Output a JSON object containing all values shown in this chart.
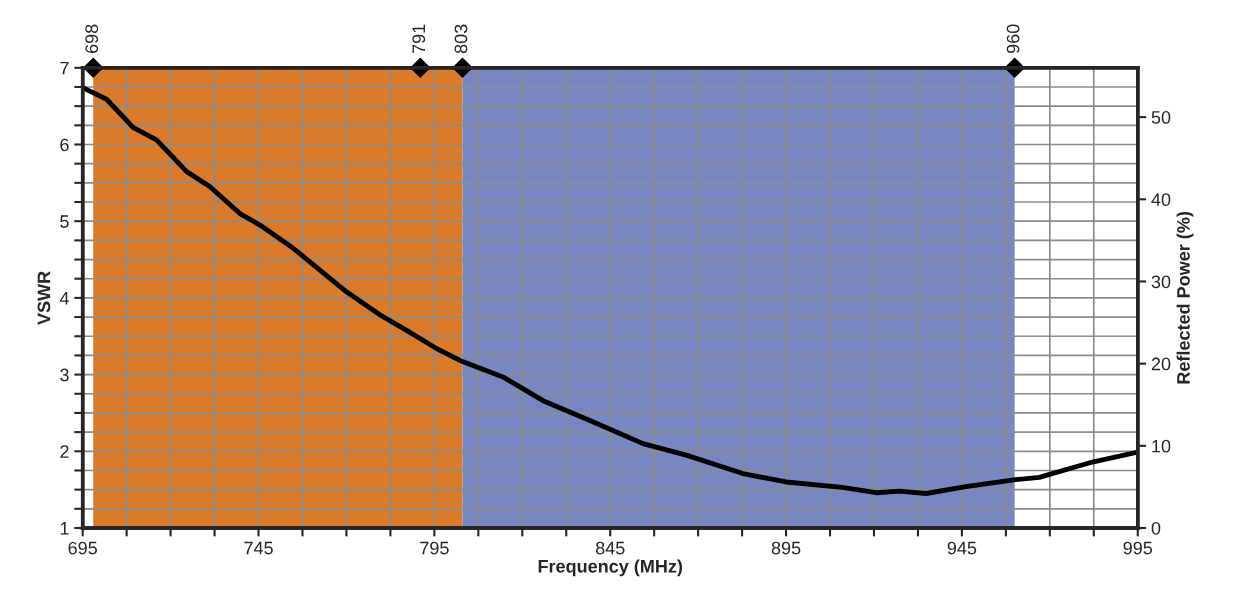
{
  "chart_data": {
    "type": "line",
    "xlabel": "Frequency (MHz)",
    "ylabel": "VSWR",
    "y2label": "Reflected Power (%)",
    "xlim": [
      695,
      995
    ],
    "xticks": [
      695,
      {
        "value": 707.5,
        "label": null
      },
      {
        "value": 720,
        "label": null
      },
      {
        "value": 732.5,
        "label": null
      },
      745,
      {
        "value": 757.5,
        "label": null
      },
      {
        "value": 770,
        "label": null
      },
      {
        "value": 782.5,
        "label": null
      },
      795,
      {
        "value": 807.5,
        "label": null
      },
      {
        "value": 820,
        "label": null
      },
      {
        "value": 832.5,
        "label": null
      },
      845,
      {
        "value": 857.5,
        "label": null
      },
      {
        "value": 870,
        "label": null
      },
      {
        "value": 882.5,
        "label": null
      },
      895,
      {
        "value": 907.5,
        "label": null
      },
      {
        "value": 920,
        "label": null
      },
      {
        "value": 932.5,
        "label": null
      },
      945,
      {
        "value": 957.5,
        "label": null
      },
      {
        "value": 970,
        "label": null
      },
      {
        "value": 982.5,
        "label": null
      },
      995
    ],
    "ylim": [
      1,
      7
    ],
    "yticks": [
      1,
      {
        "value": 1.25,
        "label": null
      },
      {
        "value": 1.5,
        "label": null
      },
      {
        "value": 1.75,
        "label": null
      },
      2,
      {
        "value": 2.25,
        "label": null
      },
      {
        "value": 2.5,
        "label": null
      },
      {
        "value": 2.75,
        "label": null
      },
      3,
      {
        "value": 3.25,
        "label": null
      },
      {
        "value": 3.5,
        "label": null
      },
      {
        "value": 3.75,
        "label": null
      },
      4,
      {
        "value": 4.25,
        "label": null
      },
      {
        "value": 4.5,
        "label": null
      },
      {
        "value": 4.75,
        "label": null
      },
      5,
      {
        "value": 5.25,
        "label": null
      },
      {
        "value": 5.5,
        "label": null
      },
      {
        "value": 5.75,
        "label": null
      },
      6,
      {
        "value": 6.25,
        "label": null
      },
      {
        "value": 6.5,
        "label": null
      },
      {
        "value": 6.75,
        "label": null
      },
      7
    ],
    "y2lim": [
      0,
      56
    ],
    "y2ticks": [
      0,
      10,
      20,
      30,
      40,
      50
    ],
    "grid": true,
    "bands": [
      {
        "axis": "x",
        "from": 698,
        "to": 803,
        "color": "#d97b2a"
      },
      {
        "axis": "x",
        "from": 803,
        "to": 960,
        "color": "#7886c2"
      }
    ],
    "series": [
      {
        "color": "#000000",
        "marker": "none",
        "line_style": "solid",
        "x": [
          695,
          701.8,
          709.4,
          716,
          724.5,
          731.2,
          739.7,
          745.4,
          754.8,
          770,
          779.5,
          787,
          795.6,
          803,
          814.5,
          825.9,
          838.2,
          844.8,
          854.3,
          866.6,
          882.7,
          895,
          911,
          920.6,
          927.2,
          934.8,
          946.1,
          960.3,
          967,
          982.1,
          995
        ],
        "values": [
          6.74,
          6.59,
          6.22,
          6.06,
          5.65,
          5.45,
          5.1,
          4.95,
          4.65,
          4.08,
          3.78,
          3.58,
          3.34,
          3.17,
          2.97,
          2.66,
          2.42,
          2.29,
          2.1,
          1.95,
          1.71,
          1.6,
          1.53,
          1.46,
          1.48,
          1.45,
          1.54,
          1.63,
          1.66,
          1.86,
          1.99
        ]
      },
      {
        "type": "scatter",
        "color": "#000000",
        "marker": "diamond",
        "x": [
          698,
          791,
          803,
          960
        ],
        "values": [
          7,
          7,
          7,
          7
        ]
      }
    ],
    "annotations": [
      {
        "text": "698",
        "x": 698,
        "y": 7
      },
      {
        "text": "791",
        "x": 791,
        "y": 7
      },
      {
        "text": "803",
        "x": 803,
        "y": 7
      },
      {
        "text": "960",
        "x": 960,
        "y": 7
      }
    ]
  }
}
